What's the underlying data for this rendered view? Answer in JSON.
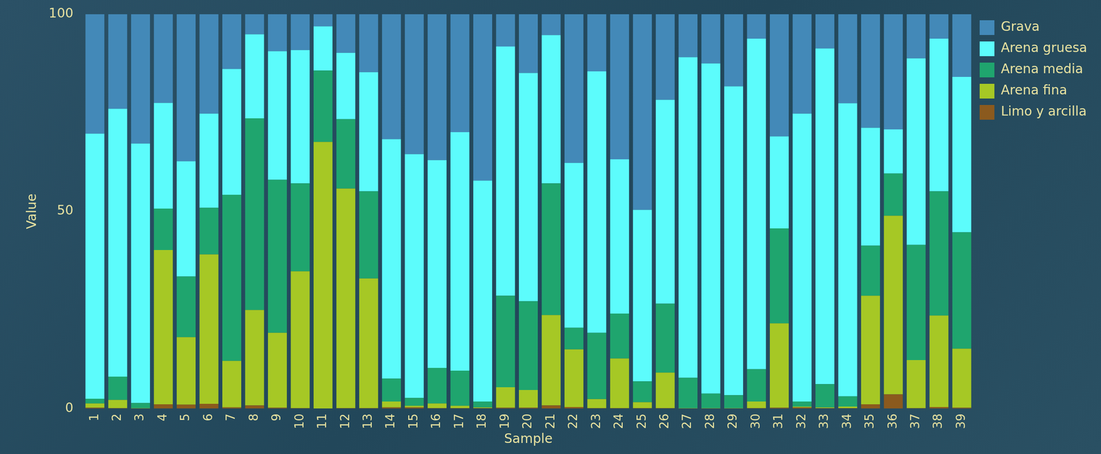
{
  "chart_data": {
    "type": "bar",
    "stacked": true,
    "x_label": "Sample",
    "y_label": "Value",
    "categories": [
      "1",
      "2",
      "3",
      "4",
      "5",
      "6",
      "7",
      "8",
      "9",
      "10",
      "11",
      "12",
      "13",
      "14",
      "15",
      "16",
      "17",
      "18",
      "19",
      "20",
      "21",
      "22",
      "23",
      "24",
      "25",
      "26",
      "27",
      "28",
      "29",
      "30",
      "31",
      "32",
      "33",
      "34",
      "35",
      "36",
      "37",
      "38",
      "39"
    ],
    "ylim": [
      0,
      100
    ],
    "yticks": [
      0,
      50,
      100
    ],
    "grid": false,
    "legend": "right",
    "series": [
      {
        "name": "Grava",
        "color": "#4389b8",
        "values": [
          30.3,
          24.0,
          32.8,
          22.5,
          37.3,
          25.2,
          13.9,
          5.1,
          9.4,
          9.1,
          3.1,
          9.8,
          14.7,
          31.7,
          35.5,
          37.0,
          29.9,
          42.2,
          8.2,
          14.9,
          5.3,
          37.7,
          14.5,
          36.8,
          49.6,
          21.7,
          10.9,
          12.5,
          18.3,
          6.2,
          31.0,
          25.2,
          8.7,
          22.6,
          28.8,
          29.2,
          11.2,
          6.2,
          15.9
        ]
      },
      {
        "name": "Arena gruesa",
        "color": "#5cfcfc",
        "values": [
          67.2,
          67.9,
          65.8,
          26.8,
          29.2,
          23.9,
          31.9,
          21.3,
          32.6,
          33.8,
          11.2,
          16.8,
          30.2,
          60.7,
          61.8,
          52.7,
          60.5,
          56.0,
          63.2,
          57.9,
          37.6,
          41.8,
          66.3,
          39.1,
          43.5,
          51.7,
          81.3,
          83.7,
          78.3,
          83.8,
          23.3,
          73.0,
          85.1,
          74.3,
          29.9,
          11.2,
          47.3,
          38.7,
          39.4
        ]
      },
      {
        "name": "Arena media",
        "color": "#1fa56e",
        "values": [
          1.2,
          5.9,
          1.3,
          10.5,
          15.4,
          11.8,
          42.1,
          48.6,
          38.8,
          22.3,
          18.1,
          17.6,
          22.1,
          5.8,
          2.0,
          9.0,
          8.9,
          1.5,
          23.2,
          22.5,
          33.4,
          5.5,
          16.8,
          11.4,
          5.3,
          17.5,
          7.7,
          3.7,
          3.3,
          8.2,
          24.1,
          1.3,
          5.9,
          2.6,
          12.7,
          10.7,
          29.2,
          31.5,
          29.5
        ]
      },
      {
        "name": "Arena fina",
        "color": "#a6c825",
        "values": [
          1.1,
          2.1,
          0.1,
          39.1,
          17.1,
          37.9,
          11.8,
          24.2,
          19.0,
          34.7,
          67.6,
          55.7,
          32.9,
          1.5,
          0.4,
          1.2,
          0.6,
          0.2,
          5.2,
          4.5,
          22.9,
          14.6,
          2.3,
          12.6,
          1.5,
          9.0,
          0.1,
          0.1,
          0.1,
          1.7,
          21.4,
          0.2,
          0.2,
          0.4,
          27.5,
          45.3,
          12.2,
          23.2,
          15.0
        ]
      },
      {
        "name": "Limo y arcilla",
        "color": "#8b5a1e",
        "values": [
          0.2,
          0.1,
          0,
          1.1,
          1.0,
          1.2,
          0.3,
          0.8,
          0.2,
          0.1,
          0,
          0.1,
          0.1,
          0.3,
          0.3,
          0.1,
          0.1,
          0.1,
          0.2,
          0.2,
          0.8,
          0.4,
          0.1,
          0.1,
          0.1,
          0.1,
          0,
          0,
          0,
          0.1,
          0.2,
          0.3,
          0.1,
          0.1,
          1.1,
          3.6,
          0.1,
          0.4,
          0.2
        ]
      }
    ]
  }
}
